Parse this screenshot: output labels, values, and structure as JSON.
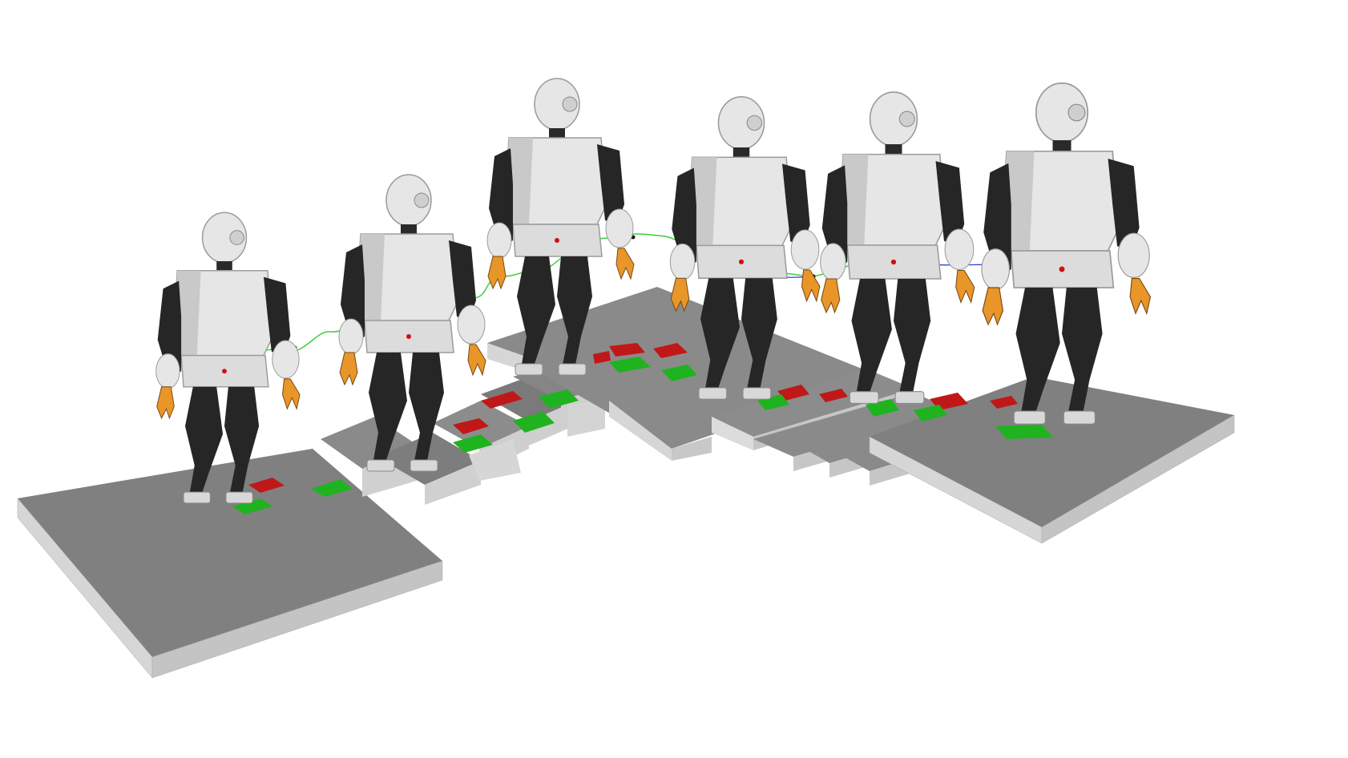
{
  "scene": {
    "description_tag": "humanoid-walking-sequence",
    "robot_count": 6,
    "colors": {
      "background": "#ffffff",
      "platform_top": "#808080",
      "platform_side": "#d0d0d0",
      "step_top": "#8a8a8a",
      "robot_white": "#e6e6e6",
      "robot_shade": "#bdbdbd",
      "robot_black": "#262626",
      "gripper": "#e8952a",
      "footstep_green": "#1fb31f",
      "footstep_red": "#c01818",
      "trajectory_green": "#3ccf3c",
      "trajectory_blue": "#2233cc",
      "com_marker": "#d01010"
    }
  }
}
